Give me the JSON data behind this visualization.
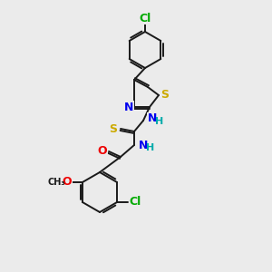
{
  "background_color": "#ebebeb",
  "bond_color": "#1a1a1a",
  "atom_colors": {
    "Cl": "#00aa00",
    "S": "#ccaa00",
    "N": "#0000ee",
    "O": "#ee0000",
    "H": "#00aaaa",
    "C": "#1a1a1a"
  },
  "font_size": 8
}
